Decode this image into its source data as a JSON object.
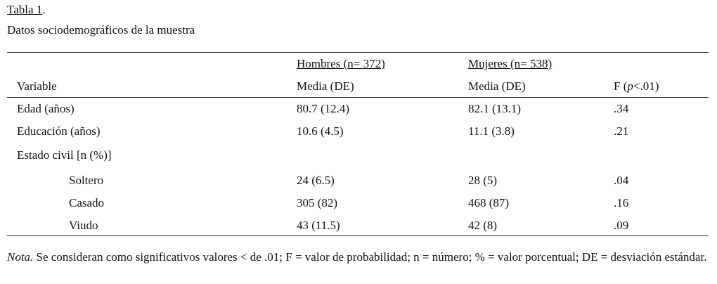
{
  "caption": {
    "label": "Tabla 1",
    "label_end": ".",
    "title": "Datos sociodemográficos de la muestra"
  },
  "table": {
    "groups": [
      "Hombres (n= 372)",
      "Mujeres (n= 538)"
    ],
    "headers": [
      "Variable",
      "Media (DE)",
      "Media (DE)"
    ],
    "f_header": {
      "start": "F (",
      "italic": "p",
      "end": "<.01)"
    },
    "rows": [
      [
        "Edad (años)",
        "80.7 (12.4)",
        "82.1 (13.1)",
        ".34"
      ],
      [
        "Educación (años)",
        "10.6 (4.5)",
        "11.1 (3.8)",
        ".21"
      ]
    ],
    "section": {
      "label": "Estado civil [n (%)]",
      "rows": [
        [
          "Soltero",
          "24 (6.5)",
          "28 (5)",
          ".04"
        ],
        [
          "Casado",
          "305 (82)",
          "468 (87)",
          ".16"
        ],
        [
          "Viudo",
          "43 (11.5)",
          "42 (8)",
          ".09"
        ]
      ]
    }
  },
  "note": {
    "label": "Nota.",
    "text": "Se consideran como significativos valores < de .01; F = valor de probabilidad; n = número; % = valor porcentual; DE = desviación estándar."
  }
}
